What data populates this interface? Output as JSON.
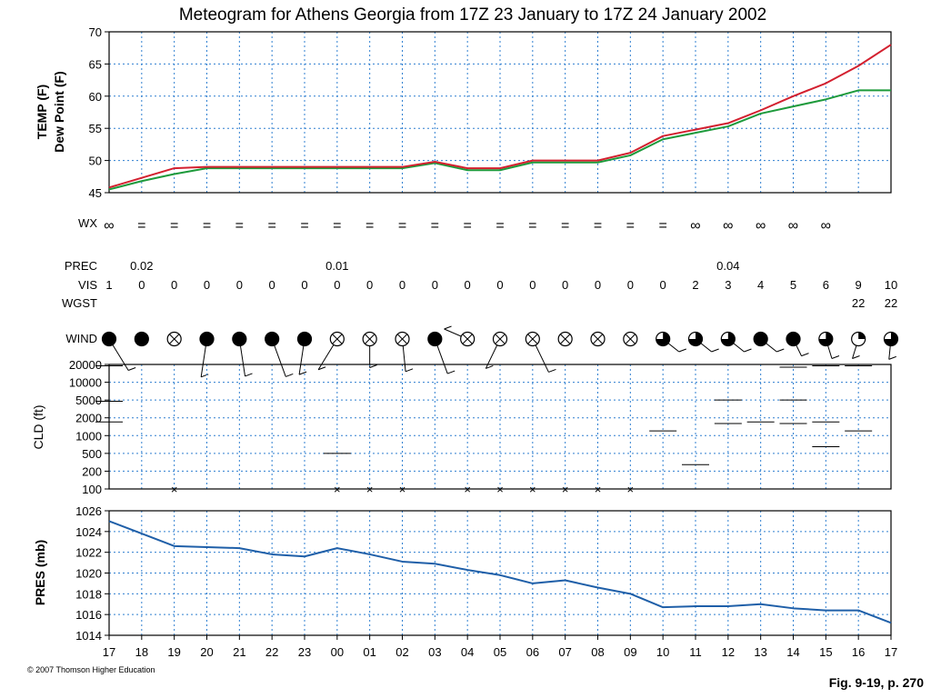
{
  "title": "Meteogram for Athens Georgia from 17Z 23 January to 17Z 24 January 2002",
  "copyright": "© 2007 Thomson Higher Education",
  "figure_ref": "Fig. 9-19, p. 270",
  "colors": {
    "temp": "#d3202f",
    "dewpoint": "#1d9a3b",
    "pressure": "#1f5fa8",
    "grid": "#2f7fd0"
  },
  "hours": [
    "17",
    "18",
    "19",
    "20",
    "21",
    "22",
    "23",
    "00",
    "01",
    "02",
    "03",
    "04",
    "05",
    "06",
    "07",
    "08",
    "09",
    "10",
    "11",
    "12",
    "13",
    "14",
    "15",
    "16",
    "17"
  ],
  "rows": {
    "wx": {
      "label": "WX",
      "symbols": [
        "∞",
        "=",
        "=",
        "=",
        "=",
        "=",
        "=",
        "=",
        "=",
        "=",
        "=",
        "=",
        "=",
        "=",
        "=",
        "=",
        "=",
        "=",
        "∞",
        "∞",
        "∞",
        "∞",
        "∞",
        "",
        ""
      ]
    },
    "prec": {
      "label": "PREC",
      "values": [
        "",
        "0.02",
        "",
        "",
        "",
        "",
        "",
        "0.01",
        "",
        "",
        "",
        "",
        "",
        "",
        "",
        "",
        "",
        "",
        "",
        "0.04",
        "",
        "",
        "",
        "",
        ""
      ]
    },
    "vis": {
      "label": "VIS",
      "values": [
        "1",
        "0",
        "0",
        "0",
        "0",
        "0",
        "0",
        "0",
        "0",
        "0",
        "0",
        "0",
        "0",
        "0",
        "0",
        "0",
        "0",
        "0",
        "2",
        "3",
        "4",
        "5",
        "6",
        "9",
        "10"
      ]
    },
    "wgst": {
      "label": "WGST",
      "values": [
        "",
        "",
        "",
        "",
        "",
        "",
        "",
        "",
        "",
        "",
        "",
        "",
        "",
        "",
        "",
        "",
        "",
        "",
        "",
        "",
        "",
        "",
        "",
        "22",
        "22"
      ]
    },
    "wind": {
      "label": "WIND",
      "cover": [
        "full",
        "full",
        "obscured",
        "full",
        "full",
        "full",
        "full",
        "obscured",
        "obscured",
        "obscured",
        "full",
        "obscured",
        "obscured",
        "obscured",
        "obscured",
        "obscured",
        "obscured",
        "3/4",
        "3/4",
        "3/4",
        "full",
        "full",
        "3/4",
        "1/4",
        "3/4"
      ]
    }
  },
  "chart_data": [
    {
      "type": "line",
      "x": [
        "17",
        "18",
        "19",
        "20",
        "21",
        "22",
        "23",
        "00",
        "01",
        "02",
        "03",
        "04",
        "05",
        "06",
        "07",
        "08",
        "09",
        "10",
        "11",
        "12",
        "13",
        "14",
        "15",
        "16",
        "17"
      ],
      "ylabel": [
        "TEMP (F)",
        "Dew Point (F)"
      ],
      "ylim": [
        45,
        70
      ],
      "yticks": [
        45,
        50,
        55,
        60,
        65,
        70
      ],
      "grid": true,
      "series": [
        {
          "name": "TEMP (F)",
          "values": [
            45.8,
            47.3,
            48.8,
            49.0,
            49.0,
            49.0,
            49.0,
            49.0,
            49.0,
            49.0,
            49.8,
            48.8,
            48.8,
            50.0,
            50.0,
            50.0,
            51.2,
            53.8,
            54.8,
            55.8,
            57.8,
            60.0,
            62.0,
            64.7,
            68.0
          ]
        },
        {
          "name": "Dew Point (F)",
          "values": [
            45.5,
            46.8,
            47.9,
            48.8,
            48.8,
            48.8,
            48.8,
            48.8,
            48.8,
            48.8,
            49.6,
            48.5,
            48.5,
            49.7,
            49.7,
            49.7,
            50.8,
            53.3,
            54.3,
            55.3,
            57.3,
            58.4,
            59.5,
            60.9,
            60.9
          ]
        }
      ]
    },
    {
      "type": "scatter",
      "x": [
        "17",
        "18",
        "19",
        "20",
        "21",
        "22",
        "23",
        "00",
        "01",
        "02",
        "03",
        "04",
        "05",
        "06",
        "07",
        "08",
        "09",
        "10",
        "11",
        "12",
        "13",
        "14",
        "15",
        "16",
        "17"
      ],
      "ylabel": "CLD (ft)",
      "yticks": [
        100,
        200,
        500,
        1000,
        2000,
        5000,
        10000,
        20000
      ],
      "scale": "log",
      "grid": true,
      "obscured_hours": [
        "19",
        "00",
        "01",
        "02",
        "04",
        "05",
        "06",
        "07",
        "08",
        "09"
      ],
      "layers": [
        {
          "hour": "00",
          "height": 500
        },
        {
          "hour": "10",
          "height": 1200
        },
        {
          "hour": "11",
          "height": 280
        },
        {
          "hour": "12",
          "height": 1600
        },
        {
          "hour": "12",
          "height": 5000
        },
        {
          "hour": "13",
          "height": 1700
        },
        {
          "hour": "14",
          "height": 1600
        },
        {
          "hour": "14",
          "height": 5000
        },
        {
          "hour": "14",
          "height": 18000
        },
        {
          "hour": "15",
          "height": 1700
        },
        {
          "hour": "15",
          "height": 650
        },
        {
          "hour": "15",
          "height": 19000
        },
        {
          "hour": "16",
          "height": 1200
        },
        {
          "hour": "16",
          "height": 19000
        },
        {
          "hour": "17",
          "height": 1700
        },
        {
          "hour": "17",
          "height": 4700
        },
        {
          "hour": "17",
          "height": 19000
        }
      ]
    },
    {
      "type": "line",
      "x": [
        "17",
        "18",
        "19",
        "20",
        "21",
        "22",
        "23",
        "00",
        "01",
        "02",
        "03",
        "04",
        "05",
        "06",
        "07",
        "08",
        "09",
        "10",
        "11",
        "12",
        "13",
        "14",
        "15",
        "16",
        "17"
      ],
      "ylabel": "PRES (mb)",
      "ylim": [
        1014,
        1026
      ],
      "yticks": [
        1014,
        1016,
        1018,
        1020,
        1022,
        1024,
        1026
      ],
      "grid": true,
      "series": [
        {
          "name": "PRES (mb)",
          "values": [
            1025.0,
            1023.8,
            1022.6,
            1022.5,
            1022.4,
            1021.8,
            1021.6,
            1022.4,
            1021.8,
            1021.1,
            1020.9,
            1020.3,
            1019.8,
            1019.0,
            1019.3,
            1018.6,
            1018.0,
            1016.7,
            1016.8,
            1016.8,
            1017.0,
            1016.6,
            1016.4,
            1016.4,
            1015.2
          ]
        }
      ]
    }
  ]
}
